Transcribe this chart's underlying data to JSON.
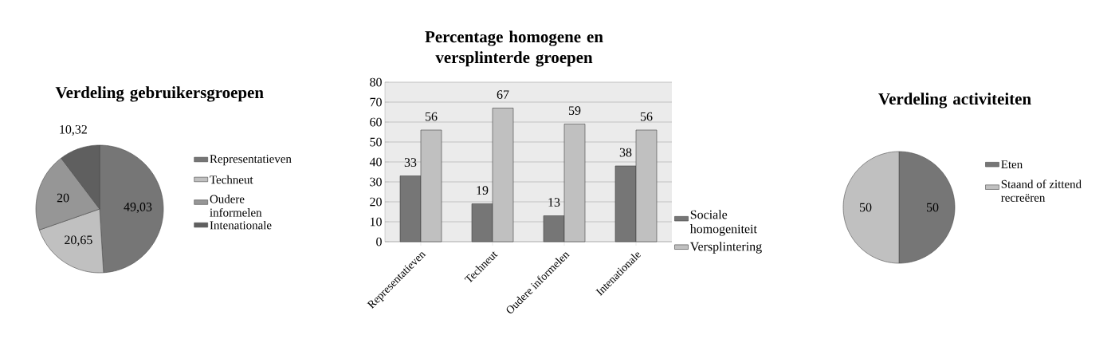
{
  "chart_data": [
    {
      "type": "pie",
      "title": "Verdeling gebruikersgroepen",
      "categories": [
        "Representatieven",
        "Techneut",
        "Oudere informelen",
        "Intenationale"
      ],
      "values": [
        49.03,
        20.65,
        20,
        10.32
      ],
      "value_labels": [
        "49,03",
        "20,65",
        "20",
        "10,32"
      ],
      "colors": [
        "#767676",
        "#c0c0c0",
        "#969696",
        "#5f5f5f"
      ],
      "legend": "right"
    },
    {
      "type": "bar",
      "title": "Percentage homogene en versplinterde groepen",
      "categories": [
        "Representatieven",
        "Techneut",
        "Oudere informelen",
        "Intenationale"
      ],
      "series": [
        {
          "name": "Sociale homogeniteit",
          "color": "#767676",
          "values": [
            33,
            19,
            13,
            38
          ]
        },
        {
          "name": "Versplintering",
          "color": "#c0c0c0",
          "values": [
            56,
            67,
            59,
            56
          ]
        }
      ],
      "ylim": [
        0,
        80
      ],
      "yticks": [
        0,
        10,
        20,
        30,
        40,
        50,
        60,
        70,
        80
      ],
      "grid": "y",
      "data_labels": true,
      "legend": "right"
    },
    {
      "type": "pie",
      "title": "Verdeling activiteiten",
      "categories": [
        "Eten",
        "Staand of zittend recreëren"
      ],
      "values": [
        50,
        50
      ],
      "colors": [
        "#767676",
        "#c0c0c0"
      ],
      "data_labels": true,
      "legend": "right"
    }
  ]
}
